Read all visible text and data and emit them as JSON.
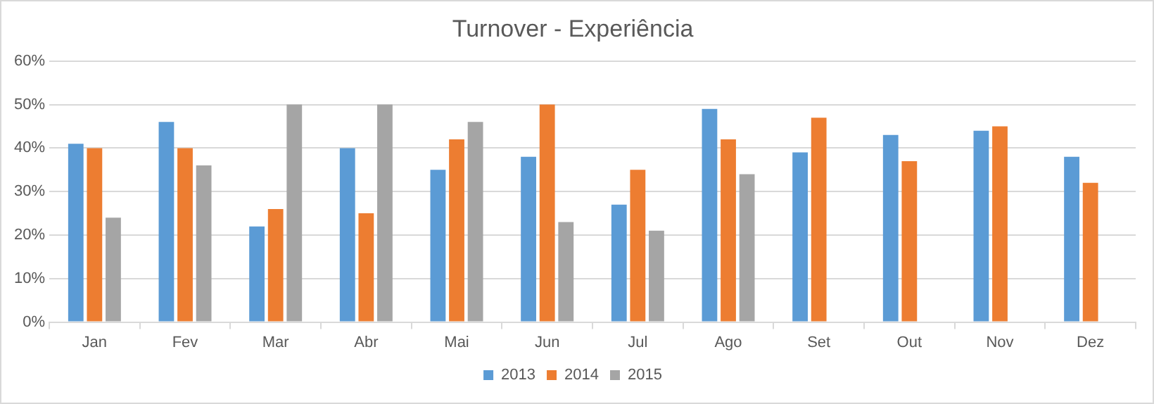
{
  "chart_data": {
    "type": "bar",
    "title": "Turnover - Experiência",
    "categories": [
      "Jan",
      "Fev",
      "Mar",
      "Abr",
      "Mai",
      "Jun",
      "Jul",
      "Ago",
      "Set",
      "Out",
      "Nov",
      "Dez"
    ],
    "series": [
      {
        "name": "2013",
        "color": "#5b9bd5",
        "values": [
          41,
          46,
          22,
          40,
          35,
          38,
          27,
          49,
          39,
          43,
          44,
          38
        ]
      },
      {
        "name": "2014",
        "color": "#ed7d31",
        "values": [
          40,
          40,
          26,
          25,
          42,
          50,
          35,
          42,
          47,
          37,
          45,
          32
        ]
      },
      {
        "name": "2015",
        "color": "#a5a5a5",
        "values": [
          24,
          36,
          50,
          50,
          46,
          23,
          21,
          34,
          null,
          null,
          null,
          null
        ]
      }
    ],
    "ylim": [
      0,
      60
    ],
    "yticks": [
      {
        "value": 0,
        "label": "0%"
      },
      {
        "value": 10,
        "label": "10%"
      },
      {
        "value": 20,
        "label": "20%"
      },
      {
        "value": 30,
        "label": "30%"
      },
      {
        "value": 40,
        "label": "40%"
      },
      {
        "value": 50,
        "label": "50%"
      },
      {
        "value": 60,
        "label": "60%"
      }
    ],
    "grid": "y",
    "legend": "bottom"
  }
}
